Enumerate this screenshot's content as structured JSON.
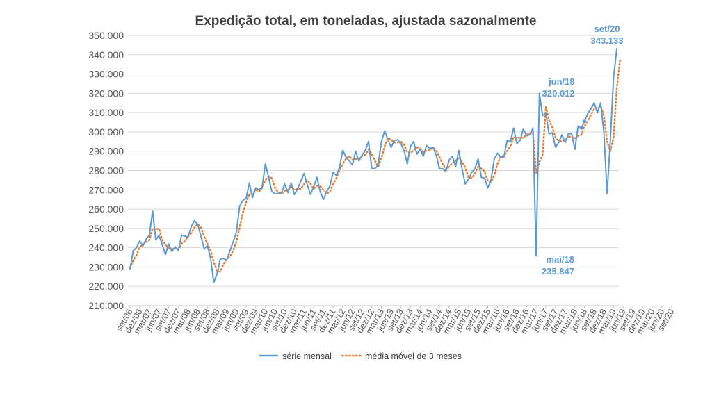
{
  "chart_data": {
    "type": "line",
    "title": "Expedição total, em toneladas, ajustada sazonalmente",
    "xlabel": "",
    "ylabel": "",
    "ylim": [
      210000,
      350000
    ],
    "y_ticks": [
      "210.000",
      "220.000",
      "230.000",
      "240.000",
      "250.000",
      "260.000",
      "270.000",
      "280.000",
      "290.000",
      "300.000",
      "310.000",
      "320.000",
      "330.000",
      "340.000",
      "350.000"
    ],
    "x_tick_labels": [
      "set/06",
      "dez/06",
      "mar/07",
      "jun/07",
      "set/07",
      "dez/07",
      "mar/08",
      "jun/08",
      "set/08",
      "dez/08",
      "mar/09",
      "jun/09",
      "set/09",
      "dez/09",
      "mar/10",
      "jun/10",
      "set/10",
      "dez/10",
      "mar/11",
      "jun/11",
      "set/11",
      "dez/11",
      "mar/12",
      "jun/12",
      "set/12",
      "dez/12",
      "mar/13",
      "jun/13",
      "set/13",
      "dez/13",
      "mar/14",
      "jun/14",
      "set/14",
      "dez/14",
      "mar/15",
      "jun/15",
      "set/15",
      "dez/15",
      "mar/16",
      "jun/16",
      "set/16",
      "dez/16",
      "mar/17",
      "jun/17",
      "set/17",
      "dez/17",
      "mar/18",
      "jun/18",
      "set/18",
      "dez/18",
      "mar/19",
      "jun/19",
      "set/19",
      "dez/19",
      "mar/20",
      "jun/20",
      "set/20"
    ],
    "grid": true,
    "legend_position": "bottom",
    "series": [
      {
        "name": "série mensal",
        "color": "#5b9bd5",
        "style": "solid",
        "values": [
          229000,
          238500,
          240000,
          243500,
          241000,
          244500,
          246500,
          259000,
          244000,
          246500,
          241500,
          236500,
          242000,
          238000,
          240500,
          238500,
          246500,
          246000,
          245500,
          251000,
          254000,
          252000,
          246000,
          239500,
          241000,
          234500,
          222000,
          226500,
          234000,
          234500,
          233500,
          238500,
          243000,
          248000,
          261500,
          264500,
          265500,
          273500,
          266000,
          271000,
          270000,
          271500,
          283500,
          276500,
          269000,
          268000,
          268000,
          268500,
          273000,
          268500,
          273500,
          267500,
          270500,
          274500,
          278500,
          272500,
          267500,
          271500,
          276500,
          269000,
          265000,
          269000,
          272000,
          279000,
          277500,
          281500,
          290500,
          287000,
          285000,
          283000,
          290000,
          285000,
          288000,
          290500,
          295000,
          281000,
          281000,
          283000,
          295000,
          300500,
          296000,
          292000,
          295500,
          296000,
          294000,
          290500,
          283500,
          292500,
          295000,
          288500,
          291000,
          287500,
          293000,
          291500,
          292000,
          288000,
          281000,
          281000,
          279500,
          285500,
          287500,
          282000,
          290500,
          281000,
          273000,
          275500,
          279000,
          281000,
          286000,
          276500,
          276000,
          271000,
          275000,
          286000,
          289000,
          287000,
          287000,
          295500,
          295000,
          302000,
          294000,
          295500,
          301500,
          298000,
          298500,
          302000,
          235847,
          320012,
          308500,
          309500,
          299000,
          299500,
          292000,
          294500,
          298500,
          294500,
          299000,
          299000,
          291000,
          303000,
          302000,
          305500,
          309500,
          312000,
          315000,
          310000,
          315000,
          300000,
          268000,
          295500,
          328000,
          343133
        ]
      },
      {
        "name": "média móvel de 3 meses",
        "color": "#ed7d31",
        "style": "dotted",
        "values": [
          229500,
          233500,
          236000,
          240500,
          241500,
          243000,
          244000,
          250000,
          249500,
          250000,
          244000,
          241500,
          240000,
          239000,
          240000,
          239000,
          242000,
          243500,
          246000,
          247500,
          250500,
          252500,
          250500,
          246000,
          242000,
          238500,
          232500,
          228000,
          227500,
          231500,
          234000,
          235500,
          238500,
          243000,
          250500,
          258000,
          263500,
          267500,
          268000,
          270000,
          269000,
          271000,
          275000,
          277000,
          276000,
          271000,
          268500,
          268000,
          269500,
          270000,
          271500,
          270000,
          270500,
          270500,
          273000,
          275000,
          273000,
          270500,
          272000,
          272000,
          270000,
          268000,
          269000,
          273000,
          276000,
          280000,
          283500,
          286000,
          287500,
          285500,
          286000,
          286000,
          287500,
          288000,
          291000,
          288500,
          285000,
          282000,
          286500,
          292500,
          297000,
          296000,
          294500,
          294500,
          295000,
          293500,
          289500,
          289000,
          290500,
          292000,
          291500,
          289500,
          290500,
          290500,
          292000,
          290500,
          287000,
          283500,
          280500,
          282000,
          284000,
          285000,
          286500,
          284500,
          281500,
          276500,
          276000,
          278500,
          282000,
          281000,
          279500,
          274500,
          274000,
          277500,
          283500,
          287500,
          287500,
          290000,
          292500,
          297500,
          297000,
          297000,
          297000,
          298500,
          299500,
          299500,
          278500,
          284500,
          288000,
          313000,
          306000,
          302500,
          297000,
          295500,
          295000,
          296000,
          297500,
          297500,
          296500,
          298000,
          298500,
          303000,
          305500,
          309000,
          312000,
          312500,
          313500,
          308500,
          295000,
          290000,
          297000,
          322500,
          337000
        ]
      }
    ],
    "annotations": [
      {
        "lines": [
          "set/20",
          "343.133"
        ]
      },
      {
        "lines": [
          "jun/18",
          "320.012"
        ]
      },
      {
        "lines": [
          "mai/18",
          "235.847"
        ]
      }
    ]
  }
}
